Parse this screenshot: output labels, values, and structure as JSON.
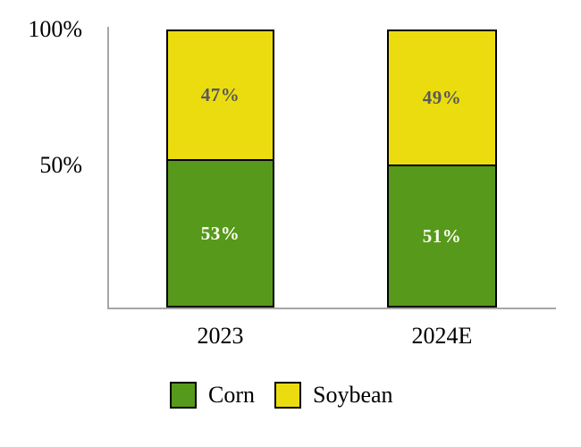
{
  "chart_data": {
    "type": "bar",
    "stacked": true,
    "title": "",
    "xlabel": "",
    "ylabel": "",
    "categories": [
      "2023",
      "2024E"
    ],
    "series": [
      {
        "name": "Corn",
        "color": "#56991B",
        "label_color": "#FCFCF0",
        "values": [
          53,
          51
        ],
        "labels": [
          "53%",
          "51%"
        ]
      },
      {
        "name": "Soybean",
        "color": "#EBDC10",
        "label_color": "#595959",
        "values": [
          47,
          49
        ],
        "labels": [
          "47%",
          "49%"
        ]
      }
    ],
    "ylim": [
      0,
      100
    ],
    "yticks": [
      {
        "value": 100,
        "label": "100%"
      },
      {
        "value": 50,
        "label": "50%"
      }
    ],
    "grid": false,
    "legend_position": "bottom",
    "axis_color": "#A6A6A6",
    "bar_border_color": "#000000"
  }
}
